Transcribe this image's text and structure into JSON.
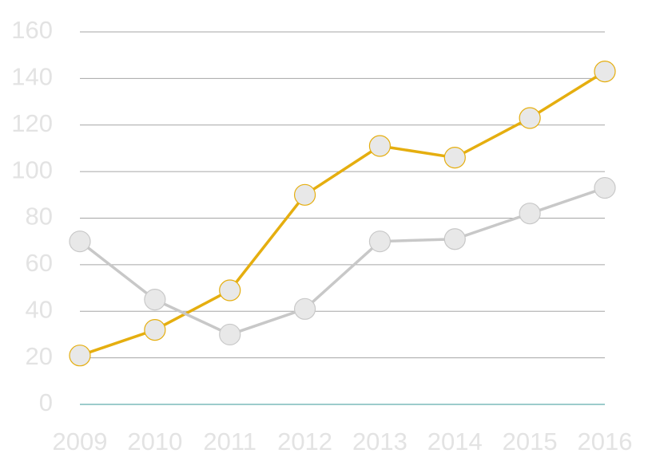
{
  "chart_data": {
    "type": "line",
    "categories": [
      "2009",
      "2010",
      "2011",
      "2012",
      "2013",
      "2014",
      "2015",
      "2016"
    ],
    "series": [
      {
        "color": "#e5ae0f",
        "values": [
          21,
          32,
          49,
          90,
          111,
          106,
          123,
          143
        ]
      },
      {
        "color": "#c8c8c8",
        "values": [
          70,
          45,
          30,
          41,
          70,
          71,
          82,
          93
        ]
      }
    ],
    "ylim": [
      0,
      160
    ],
    "yticks": [
      0,
      20,
      40,
      60,
      80,
      100,
      120,
      140,
      160
    ],
    "grid": true,
    "grid_color": "#a6a6a6",
    "axis_color": "#3a9a9a",
    "marker_fill": "#e8e8e8",
    "label_color": "#e3e3e3"
  }
}
